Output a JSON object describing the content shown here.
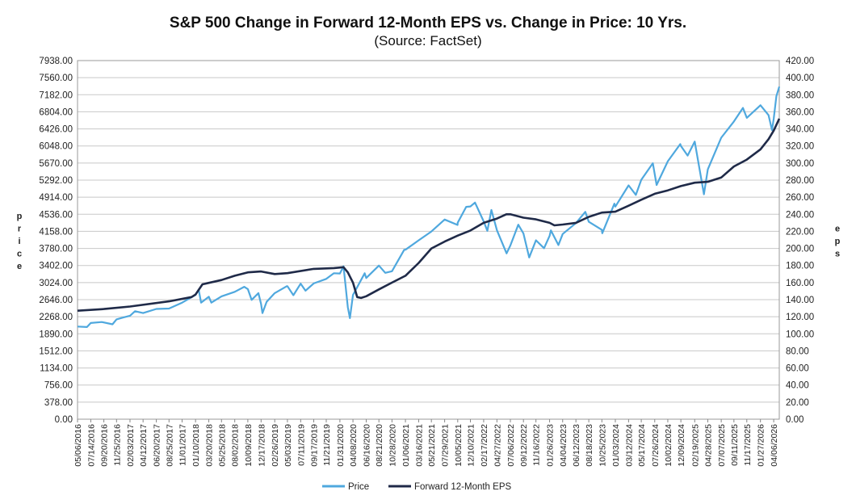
{
  "chart_data": {
    "type": "line",
    "title": "S&P 500 Change in Forward 12-Month EPS vs. Change in Price: 10 Yrs.",
    "subtitle": "(Source: FactSet)",
    "ylabel_left": "Price",
    "ylabel_right": "EPS",
    "ylim_left": [
      0,
      7938
    ],
    "ylim_right": [
      0,
      420
    ],
    "y_ticks_left": [
      "7938.00",
      "7560.00",
      "7182.00",
      "6804.00",
      "6426.00",
      "6048.00",
      "5670.00",
      "5292.00",
      "4914.00",
      "4536.00",
      "4158.00",
      "3780.00",
      "3402.00",
      "3024.00",
      "2646.00",
      "2268.00",
      "1890.00",
      "1512.00",
      "1134.00",
      "756.00",
      "378.00",
      "0.00"
    ],
    "y_ticks_right": [
      "420.00",
      "400.00",
      "380.00",
      "360.00",
      "340.00",
      "320.00",
      "300.00",
      "280.00",
      "260.00",
      "240.00",
      "220.00",
      "200.00",
      "180.00",
      "160.00",
      "140.00",
      "120.00",
      "100.00",
      "80.00",
      "60.00",
      "40.00",
      "20.00",
      "0.00"
    ],
    "x_range": [
      "2016-05-06",
      "2026-05-05"
    ],
    "x_ticks": [
      "05/06/2016",
      "07/14/2016",
      "09/20/2016",
      "11/25/2016",
      "02/03/2017",
      "04/12/2017",
      "06/20/2017",
      "08/25/2017",
      "11/01/2017",
      "01/10/2018",
      "03/20/2018",
      "05/25/2018",
      "08/02/2018",
      "10/09/2018",
      "12/17/2018",
      "02/26/2019",
      "05/03/2019",
      "07/11/2019",
      "09/17/2019",
      "11/21/2019",
      "01/31/2020",
      "04/08/2020",
      "06/16/2020",
      "08/21/2020",
      "10/28/2020",
      "01/06/2021",
      "03/16/2021",
      "05/21/2021",
      "07/29/2021",
      "10/05/2021",
      "12/10/2021",
      "02/17/2022",
      "04/27/2022",
      "07/06/2022",
      "09/12/2022",
      "11/16/2022",
      "01/26/2023",
      "04/04/2023",
      "06/12/2023",
      "08/18/2023",
      "10/25/2023",
      "01/03/2024",
      "03/12/2024",
      "05/17/2024",
      "07/26/2024",
      "10/02/2024",
      "12/09/2024",
      "02/19/2025",
      "04/28/2025",
      "07/07/2025",
      "09/11/2025",
      "11/17/2025",
      "01/27/2026",
      "04/06/2026"
    ],
    "series": [
      {
        "name": "Price",
        "color": "#4fa8de",
        "axis": "left",
        "points": [
          [
            "2016-05-06",
            2050
          ],
          [
            "2016-06-24",
            2040
          ],
          [
            "2016-07-14",
            2130
          ],
          [
            "2016-09-09",
            2150
          ],
          [
            "2016-11-04",
            2100
          ],
          [
            "2016-11-25",
            2210
          ],
          [
            "2016-12-30",
            2250
          ],
          [
            "2017-02-03",
            2290
          ],
          [
            "2017-03-01",
            2390
          ],
          [
            "2017-04-12",
            2350
          ],
          [
            "2017-06-20",
            2440
          ],
          [
            "2017-08-25",
            2450
          ],
          [
            "2017-11-01",
            2580
          ],
          [
            "2018-01-10",
            2750
          ],
          [
            "2018-01-26",
            2870
          ],
          [
            "2018-02-08",
            2580
          ],
          [
            "2018-03-20",
            2710
          ],
          [
            "2018-04-02",
            2580
          ],
          [
            "2018-05-25",
            2720
          ],
          [
            "2018-08-02",
            2820
          ],
          [
            "2018-09-20",
            2930
          ],
          [
            "2018-10-09",
            2880
          ],
          [
            "2018-10-29",
            2640
          ],
          [
            "2018-12-03",
            2790
          ],
          [
            "2018-12-17",
            2550
          ],
          [
            "2018-12-24",
            2350
          ],
          [
            "2019-01-15",
            2600
          ],
          [
            "2019-02-26",
            2790
          ],
          [
            "2019-04-30",
            2945
          ],
          [
            "2019-05-03",
            2945
          ],
          [
            "2019-06-03",
            2745
          ],
          [
            "2019-07-11",
            3000
          ],
          [
            "2019-08-05",
            2845
          ],
          [
            "2019-09-17",
            3005
          ],
          [
            "2019-11-21",
            3105
          ],
          [
            "2019-12-31",
            3230
          ],
          [
            "2020-01-31",
            3225
          ],
          [
            "2020-02-19",
            3385
          ],
          [
            "2020-03-12",
            2480
          ],
          [
            "2020-03-23",
            2237
          ],
          [
            "2020-04-08",
            2750
          ],
          [
            "2020-06-08",
            3230
          ],
          [
            "2020-06-16",
            3125
          ],
          [
            "2020-08-21",
            3400
          ],
          [
            "2020-09-23",
            3240
          ],
          [
            "2020-10-28",
            3275
          ],
          [
            "2020-12-31",
            3750
          ],
          [
            "2021-01-06",
            3750
          ],
          [
            "2021-03-16",
            3960
          ],
          [
            "2021-05-21",
            4155
          ],
          [
            "2021-07-29",
            4420
          ],
          [
            "2021-10-04",
            4300
          ],
          [
            "2021-10-05",
            4350
          ],
          [
            "2021-11-18",
            4700
          ],
          [
            "2021-12-10",
            4710
          ],
          [
            "2022-01-03",
            4795
          ],
          [
            "2022-02-17",
            4380
          ],
          [
            "2022-03-08",
            4170
          ],
          [
            "2022-03-29",
            4630
          ],
          [
            "2022-04-27",
            4180
          ],
          [
            "2022-06-16",
            3670
          ],
          [
            "2022-07-06",
            3845
          ],
          [
            "2022-08-16",
            4305
          ],
          [
            "2022-09-12",
            4110
          ],
          [
            "2022-10-12",
            3580
          ],
          [
            "2022-11-16",
            3960
          ],
          [
            "2022-12-28",
            3785
          ],
          [
            "2023-01-26",
            4060
          ],
          [
            "2023-02-02",
            4180
          ],
          [
            "2023-03-13",
            3855
          ],
          [
            "2023-04-04",
            4100
          ],
          [
            "2023-06-12",
            4340
          ],
          [
            "2023-07-31",
            4590
          ],
          [
            "2023-08-18",
            4370
          ],
          [
            "2023-10-25",
            4190
          ],
          [
            "2023-10-27",
            4115
          ],
          [
            "2023-12-29",
            4770
          ],
          [
            "2024-01-03",
            4705
          ],
          [
            "2024-03-12",
            5175
          ],
          [
            "2024-04-19",
            4965
          ],
          [
            "2024-05-17",
            5300
          ],
          [
            "2024-07-16",
            5665
          ],
          [
            "2024-08-05",
            5185
          ],
          [
            "2024-10-02",
            5710
          ],
          [
            "2024-12-06",
            6090
          ],
          [
            "2024-12-09",
            6050
          ],
          [
            "2025-01-13",
            5835
          ],
          [
            "2025-02-19",
            6145
          ],
          [
            "2025-04-08",
            4980
          ],
          [
            "2025-04-28",
            5530
          ],
          [
            "2025-07-07",
            6230
          ],
          [
            "2025-09-11",
            6590
          ],
          [
            "2025-10-28",
            6890
          ],
          [
            "2025-11-17",
            6670
          ],
          [
            "2026-01-27",
            6950
          ],
          [
            "2026-03-10",
            6730
          ],
          [
            "2026-03-28",
            6400
          ],
          [
            "2026-04-06",
            6650
          ],
          [
            "2026-04-20",
            7150
          ],
          [
            "2026-05-05",
            7360
          ]
        ]
      },
      {
        "name": "Forward 12-Month EPS",
        "color": "#1f2a48",
        "axis": "right",
        "points": [
          [
            "2016-05-06",
            127
          ],
          [
            "2016-09-20",
            129
          ],
          [
            "2017-02-03",
            132
          ],
          [
            "2017-08-25",
            138
          ],
          [
            "2017-12-20",
            143
          ],
          [
            "2018-01-10",
            146
          ],
          [
            "2018-02-15",
            158
          ],
          [
            "2018-05-25",
            163
          ],
          [
            "2018-08-02",
            168
          ],
          [
            "2018-10-09",
            172
          ],
          [
            "2018-12-17",
            173
          ],
          [
            "2019-02-26",
            170
          ],
          [
            "2019-05-03",
            171
          ],
          [
            "2019-09-17",
            176
          ],
          [
            "2019-12-31",
            177
          ],
          [
            "2020-02-19",
            178
          ],
          [
            "2020-03-12",
            172
          ],
          [
            "2020-04-08",
            160
          ],
          [
            "2020-04-30",
            143
          ],
          [
            "2020-05-20",
            142
          ],
          [
            "2020-06-16",
            144
          ],
          [
            "2020-08-21",
            152
          ],
          [
            "2020-10-28",
            160
          ],
          [
            "2021-01-06",
            168
          ],
          [
            "2021-03-16",
            183
          ],
          [
            "2021-05-21",
            200
          ],
          [
            "2021-07-29",
            208
          ],
          [
            "2021-10-05",
            215
          ],
          [
            "2021-12-10",
            221
          ],
          [
            "2022-02-17",
            230
          ],
          [
            "2022-04-27",
            235
          ],
          [
            "2022-06-15",
            240
          ],
          [
            "2022-07-06",
            240
          ],
          [
            "2022-09-12",
            236
          ],
          [
            "2022-11-16",
            234
          ],
          [
            "2023-01-26",
            230
          ],
          [
            "2023-02-20",
            227
          ],
          [
            "2023-04-04",
            228
          ],
          [
            "2023-06-12",
            230
          ],
          [
            "2023-08-18",
            237
          ],
          [
            "2023-10-25",
            242
          ],
          [
            "2024-01-03",
            243
          ],
          [
            "2024-03-12",
            250
          ],
          [
            "2024-05-17",
            257
          ],
          [
            "2024-07-26",
            264
          ],
          [
            "2024-10-02",
            268
          ],
          [
            "2024-12-09",
            273
          ],
          [
            "2025-02-19",
            277
          ],
          [
            "2025-04-28",
            278
          ],
          [
            "2025-07-07",
            283
          ],
          [
            "2025-09-11",
            296
          ],
          [
            "2025-11-17",
            304
          ],
          [
            "2026-01-27",
            316
          ],
          [
            "2026-03-10",
            328
          ],
          [
            "2026-04-06",
            338
          ],
          [
            "2026-05-05",
            352
          ]
        ]
      }
    ],
    "legend_position": "bottom-center",
    "grid": true
  }
}
